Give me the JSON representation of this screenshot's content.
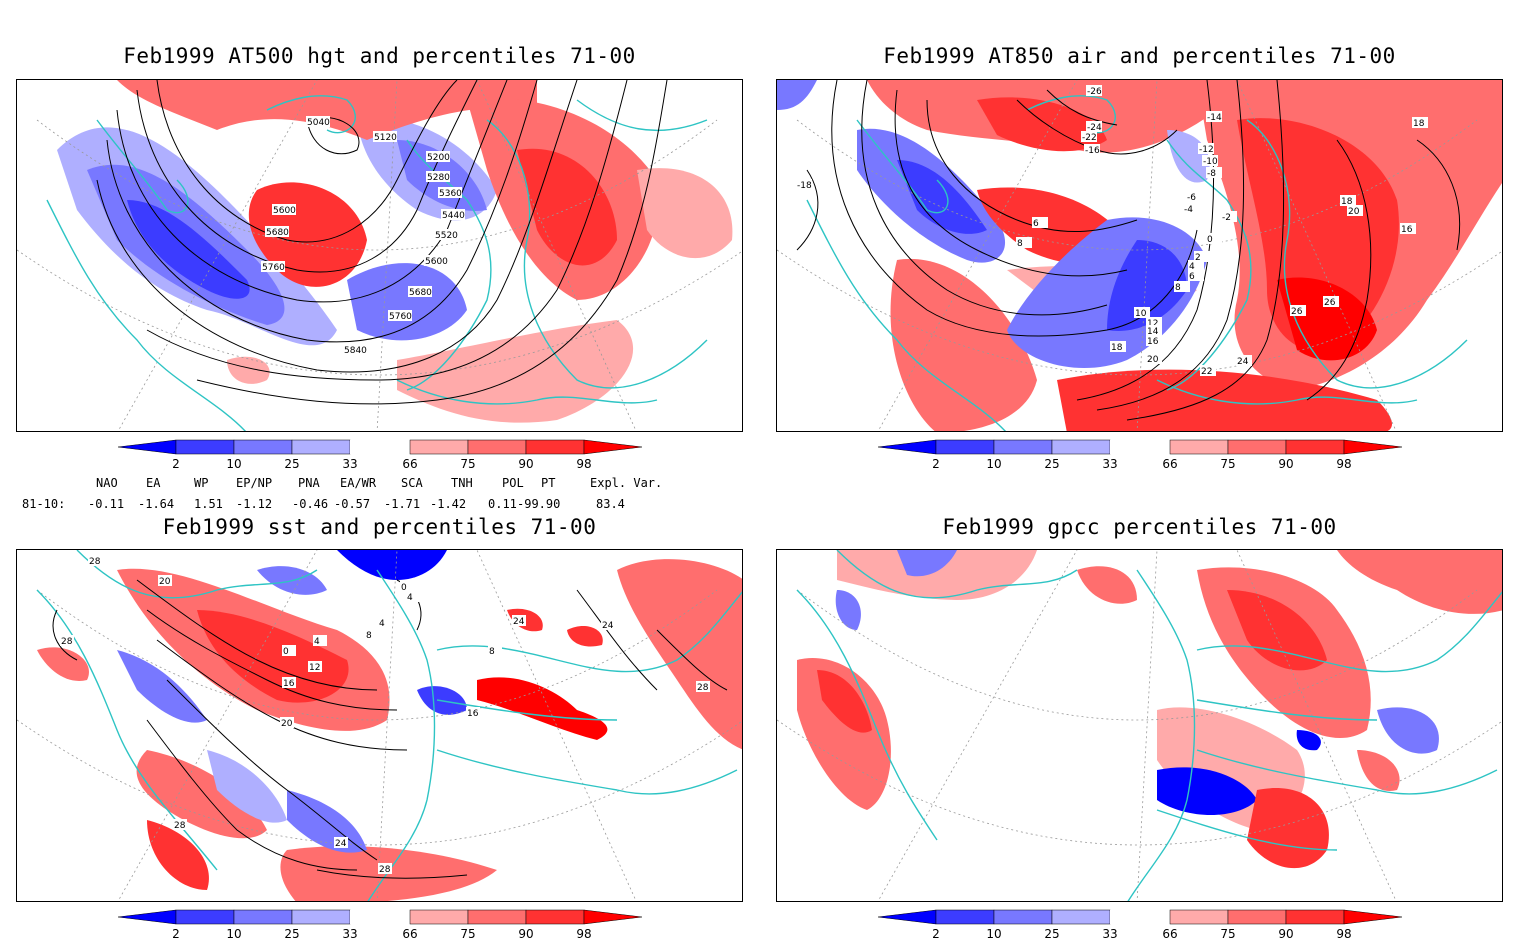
{
  "panels": [
    {
      "id": "hgt",
      "title": "Feb1999 AT500 hgt and percentiles 71-00",
      "contour_labels": [
        "5040",
        "5120",
        "5200",
        "5280",
        "5360",
        "5440",
        "5520",
        "5600",
        "5680",
        "5760",
        "5600",
        "5680",
        "5760",
        "5840"
      ]
    },
    {
      "id": "air",
      "title": "Feb1999 AT850 air and percentiles 71-00",
      "contour_labels": [
        "-26",
        "-24",
        "-22",
        "-16",
        "-14",
        "-12",
        "-10",
        "-8",
        "-6",
        "-4",
        "-2",
        "0",
        "2",
        "4",
        "6",
        "8",
        "10",
        "12",
        "14",
        "16",
        "18",
        "20",
        "22",
        "24",
        "26",
        "26",
        "20",
        "18",
        "18",
        "16",
        "6",
        "8",
        "-18"
      ]
    },
    {
      "id": "sst",
      "title": "Feb1999 sst and percentiles 71-00",
      "contour_labels": [
        "28",
        "20",
        "28",
        "0",
        "4",
        "8",
        "12",
        "16",
        "20",
        "24",
        "28",
        "24",
        "28",
        "0",
        "4",
        "4",
        "16",
        "8",
        "24",
        "28"
      ]
    },
    {
      "id": "gpcc",
      "title": "Feb1999 gpcc percentiles 71-00",
      "contour_labels": []
    }
  ],
  "colorbar": {
    "labels": [
      "2",
      "10",
      "25",
      "33",
      "66",
      "75",
      "90",
      "98"
    ],
    "colors": {
      "below2": "#0000ff",
      "b2_10": "#3c3cff",
      "b10_25": "#7878ff",
      "b25_33": "#afafff",
      "a66_75": "#ffaaaa",
      "a75_90": "#ff6e6e",
      "a90_98": "#ff3232",
      "above98": "#ff0000"
    }
  },
  "teleconnections": {
    "headers": [
      "NAO",
      "EA",
      "WP",
      "EP/NP",
      "PNA",
      "EA/WR",
      "SCA",
      "TNH",
      "POL",
      "PT",
      "Expl. Var."
    ],
    "row_label": "81-10:",
    "values": [
      "-0.11",
      "-1.64",
      "1.51",
      "-1.12",
      "-0.46",
      "-0.57",
      "-1.71",
      "-1.42",
      "0.11",
      "-99.90",
      "83.4"
    ]
  },
  "map_colors": {
    "land_outline": "#2ec4c4",
    "contour": "#000000",
    "grid": "#999999"
  }
}
